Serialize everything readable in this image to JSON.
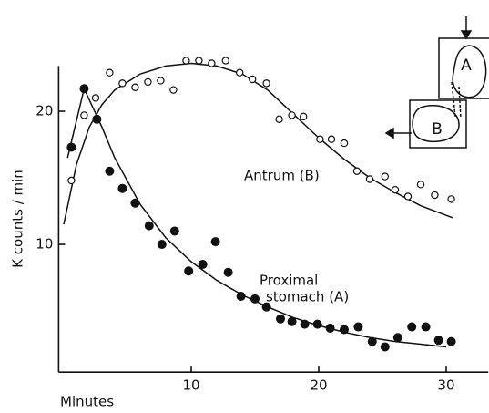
{
  "chart_data": {
    "type": "scatter",
    "x_label": "Minutes",
    "y_label": "K counts / min",
    "xlim": [
      -0.4,
      33.3
    ],
    "ylim": [
      0.4,
      23.4
    ],
    "xticks": [
      10,
      20,
      30
    ],
    "yticks": [
      10,
      20
    ],
    "grid": false,
    "annotations": [
      "Antrum (B)",
      "Proximal",
      "stomach (A)"
    ],
    "inset_labels": [
      "A",
      "B"
    ],
    "series": [
      {
        "marker": "open",
        "color": "#111111",
        "x": [
          0.6,
          1.6,
          2.5,
          3.6,
          4.6,
          5.6,
          6.6,
          7.6,
          8.6,
          9.6,
          10.6,
          11.6,
          12.7,
          13.8,
          14.8,
          15.9,
          16.9,
          17.9,
          18.8,
          20.1,
          21.0,
          22.0,
          23.0,
          24.0,
          25.2,
          26.0,
          27.0,
          28.0,
          29.1,
          30.4
        ],
        "values": [
          14.8,
          19.7,
          21.0,
          22.9,
          22.1,
          21.8,
          22.2,
          22.3,
          21.6,
          23.8,
          23.8,
          23.6,
          23.8,
          22.9,
          22.4,
          22.1,
          19.4,
          19.7,
          19.6,
          17.9,
          17.9,
          17.6,
          15.5,
          14.9,
          15.1,
          14.1,
          13.6,
          14.5,
          13.7,
          13.4
        ]
      },
      {
        "marker": "filled",
        "color": "#111111",
        "x": [
          0.6,
          1.6,
          2.6,
          3.6,
          4.6,
          5.6,
          6.7,
          7.7,
          8.7,
          9.8,
          10.9,
          11.9,
          12.9,
          13.9,
          15.0,
          15.9,
          17.0,
          17.9,
          18.9,
          19.9,
          20.9,
          22.0,
          23.1,
          24.2,
          25.2,
          26.2,
          27.3,
          28.4,
          29.4,
          30.4
        ],
        "values": [
          17.3,
          21.7,
          19.4,
          15.5,
          14.2,
          13.1,
          11.4,
          10.0,
          11.0,
          8.0,
          8.5,
          10.2,
          7.9,
          6.1,
          5.9,
          5.3,
          4.4,
          4.2,
          4.0,
          4.0,
          3.7,
          3.6,
          3.8,
          2.7,
          2.3,
          3.0,
          3.8,
          3.8,
          2.8,
          2.7
        ]
      }
    ],
    "curves": [
      {
        "color": "#111111",
        "x": [
          0,
          1,
          2,
          3,
          4,
          6,
          8,
          10,
          12,
          14,
          16,
          18,
          20,
          22,
          24,
          26,
          28,
          30.5
        ],
        "values": [
          11.5,
          16,
          18.8,
          20.5,
          21.6,
          22.8,
          23.4,
          23.6,
          23.4,
          22.8,
          21.6,
          19.8,
          18.0,
          16.4,
          15.0,
          13.9,
          12.9,
          12.0
        ]
      },
      {
        "color": "#111111",
        "x": [
          0.3,
          1.6,
          3,
          4,
          6,
          8,
          10,
          12,
          14,
          16,
          18,
          20,
          22,
          24,
          26,
          28,
          30
        ],
        "values": [
          16.5,
          21.7,
          18.8,
          16.5,
          13.0,
          10.5,
          8.7,
          7.3,
          6.2,
          5.3,
          4.5,
          3.9,
          3.4,
          3.0,
          2.7,
          2.5,
          2.3
        ]
      }
    ]
  }
}
